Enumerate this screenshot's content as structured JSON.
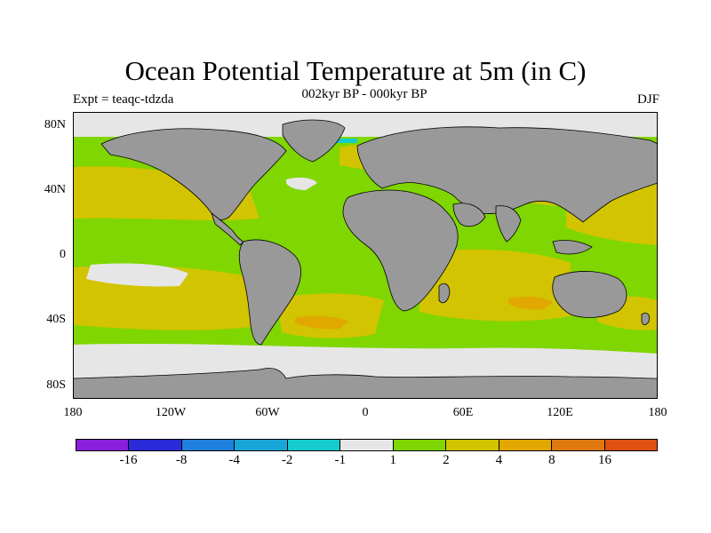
{
  "figure": {
    "title": "Ocean Potential Temperature at 5m (in C)",
    "experiment": "Expt = teaqc-tdzda",
    "period": "002kyr BP - 000kyr BP",
    "season": "DJF"
  },
  "axes": {
    "lat_labels": [
      "80N",
      "40N",
      "0",
      "40S",
      "80S"
    ],
    "lon_labels": [
      "180",
      "120W",
      "60W",
      "0",
      "60E",
      "120E",
      "180"
    ]
  },
  "colorbar": {
    "colors": [
      "#8a1fdc",
      "#2a2ad8",
      "#1f7fdc",
      "#18a6d8",
      "#14cccc",
      "#e6e6e6",
      "#7fd600",
      "#d2c400",
      "#e0a800",
      "#e07810",
      "#e05010"
    ],
    "labels": [
      "-16",
      "-8",
      "-4",
      "-2",
      "-1",
      "1",
      "2",
      "4",
      "8",
      "16"
    ]
  },
  "colors": {
    "land": "#999999",
    "ocean_1_2": "#7fd600",
    "ocean_2_4": "#d2c400",
    "ocean_4_8": "#e0a800",
    "ocean_m1_1": "#e6e6e6",
    "ocean_m1_m2": "#14cccc"
  }
}
